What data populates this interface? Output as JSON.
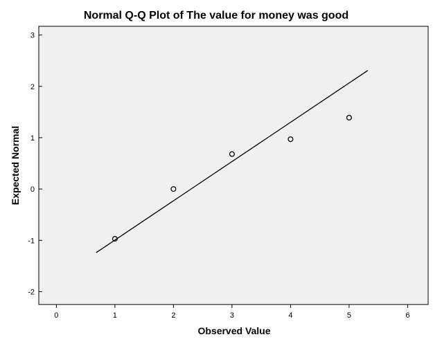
{
  "chart_data": {
    "type": "scatter",
    "title": "Normal Q-Q Plot of The value for money was good",
    "xlabel": "Observed Value",
    "ylabel": "Expected Normal",
    "xlim": [
      -0.3,
      6.35
    ],
    "ylim": [
      -2.25,
      3.17
    ],
    "x_ticks": [
      "0",
      "1",
      "2",
      "3",
      "4",
      "5",
      "6"
    ],
    "y_ticks": [
      "-2",
      "-1",
      "0",
      "1",
      "2",
      "3"
    ],
    "grid": false,
    "points": [
      {
        "x": 1,
        "y": -0.97
      },
      {
        "x": 2,
        "y": 0.0
      },
      {
        "x": 3,
        "y": 0.68
      },
      {
        "x": 4,
        "y": 0.97
      },
      {
        "x": 5,
        "y": 1.39
      }
    ],
    "reference_line": [
      {
        "x": 0.68,
        "y": -1.24
      },
      {
        "x": 5.32,
        "y": 2.31
      }
    ]
  }
}
